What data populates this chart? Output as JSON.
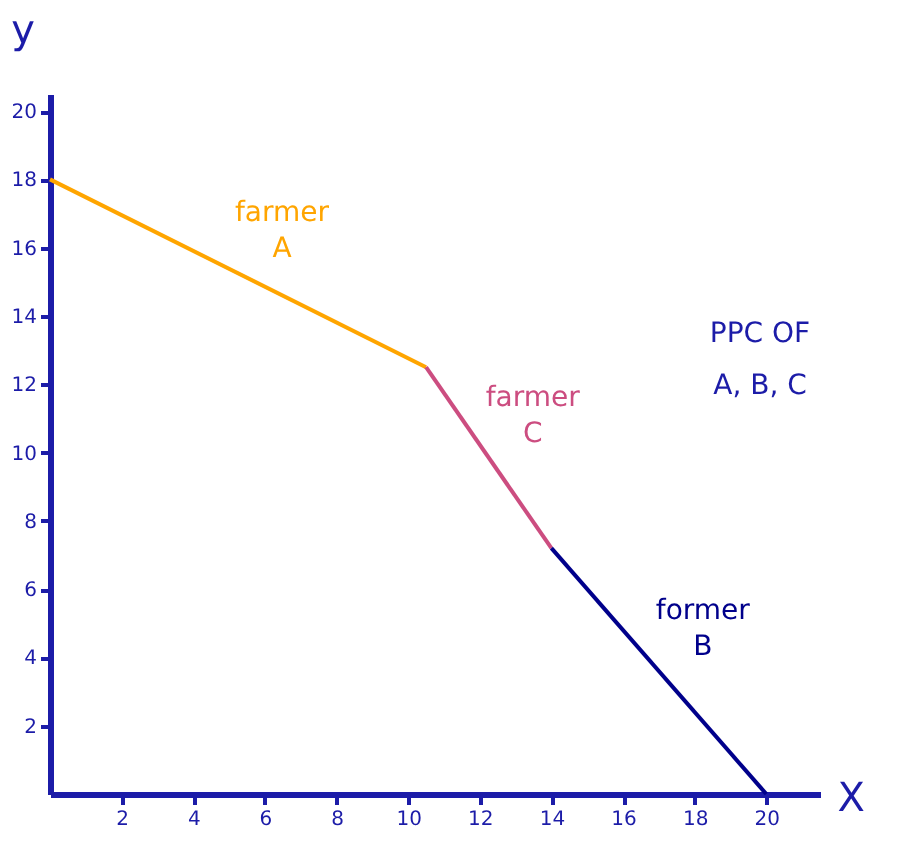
{
  "chart_data": {
    "type": "line",
    "xlabel": "X",
    "ylabel": "y",
    "xlim": [
      0,
      21.5
    ],
    "ylim": [
      0,
      20.5
    ],
    "xticks": [
      2,
      4,
      6,
      8,
      10,
      12,
      14,
      16,
      18,
      20
    ],
    "yticks": [
      2,
      4,
      6,
      8,
      10,
      12,
      14,
      16,
      18,
      20
    ],
    "grid": false,
    "marker": "none",
    "line_style": "solid",
    "series": [
      {
        "name": "farmer A",
        "color": "#ffa500",
        "x": [
          0,
          10.5
        ],
        "values": [
          18,
          12.5
        ]
      },
      {
        "name": "farmer C",
        "color": "#cc4d80",
        "x": [
          10.5,
          14
        ],
        "values": [
          12.5,
          7.2
        ]
      },
      {
        "name": "former B",
        "color": "#00008b",
        "x": [
          14,
          20
        ],
        "values": [
          7.2,
          0
        ]
      }
    ],
    "annotations": [
      "PPC OF A, B, C"
    ]
  }
}
